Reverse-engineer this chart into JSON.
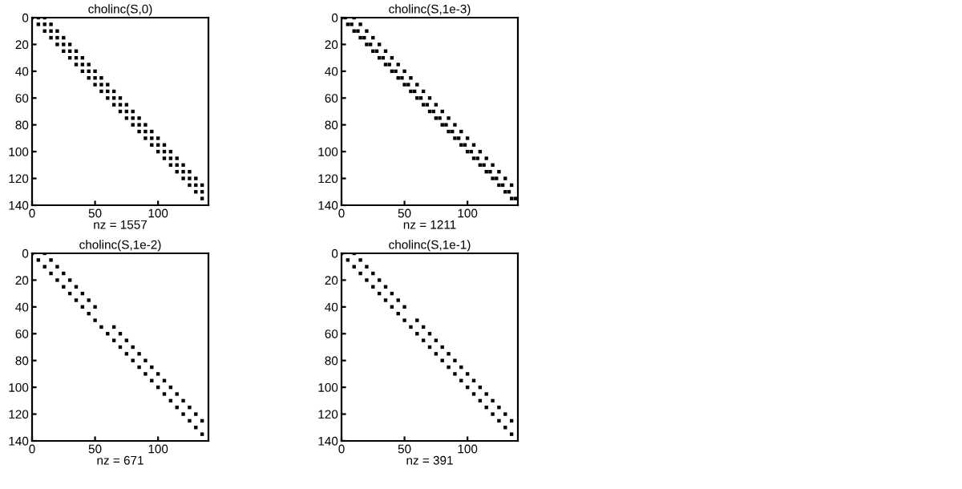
{
  "chart_data": [
    {
      "type": "scatter",
      "title": "cholinc(S,0)",
      "xlabel": "nz = 1557",
      "xlim": [
        0,
        140
      ],
      "ylim": [
        140,
        0
      ],
      "xticks": [
        0,
        50,
        100
      ],
      "yticks": [
        0,
        20,
        40,
        60,
        80,
        100,
        120,
        140
      ],
      "marker": "square",
      "grid": false,
      "series": [
        {
          "color": "#000000",
          "x": [
            0,
            5,
            10,
            15,
            20,
            25,
            30,
            35,
            40,
            45,
            50,
            55,
            60,
            65,
            70,
            75,
            80,
            85,
            90,
            95,
            100,
            105,
            110,
            115,
            120,
            125,
            130,
            135
          ],
          "values": [
            0,
            5,
            10,
            15,
            20,
            25,
            30,
            35,
            40,
            45,
            50,
            55,
            60,
            65,
            70,
            75,
            80,
            85,
            90,
            95,
            100,
            105,
            110,
            115,
            120,
            125,
            130,
            135
          ]
        },
        {
          "color": "#000000",
          "x": [
            5,
            10,
            15,
            20,
            25,
            30,
            35,
            40,
            45,
            50,
            55,
            60,
            65,
            70,
            75,
            80,
            85,
            90,
            95,
            100,
            105,
            110,
            115,
            120,
            125,
            130,
            135
          ],
          "values": [
            0,
            5,
            10,
            15,
            20,
            25,
            30,
            35,
            40,
            45,
            50,
            55,
            60,
            65,
            70,
            75,
            80,
            85,
            90,
            95,
            100,
            105,
            110,
            115,
            120,
            125,
            130
          ]
        },
        {
          "color": "#000000",
          "x": [
            10,
            15,
            20,
            25,
            30,
            35,
            40,
            45,
            50,
            55,
            60,
            65,
            70,
            75,
            80,
            85,
            90,
            95,
            100,
            105,
            110,
            115,
            120,
            125,
            130,
            135
          ],
          "values": [
            0,
            5,
            10,
            15,
            20,
            25,
            30,
            35,
            40,
            45,
            50,
            55,
            60,
            65,
            70,
            75,
            80,
            85,
            90,
            95,
            100,
            105,
            110,
            115,
            120,
            125
          ]
        }
      ]
    },
    {
      "type": "scatter",
      "title": "cholinc(S,1e-3)",
      "xlabel": "nz = 1211",
      "xlim": [
        0,
        140
      ],
      "ylim": [
        140,
        0
      ],
      "xticks": [
        0,
        50,
        100
      ],
      "yticks": [
        0,
        20,
        40,
        60,
        80,
        100,
        120,
        140
      ],
      "marker": "square",
      "grid": false,
      "series": [
        {
          "color": "#000000",
          "x": [
            0,
            5,
            10,
            15,
            20,
            25,
            30,
            35,
            40,
            45,
            50,
            55,
            60,
            65,
            70,
            75,
            80,
            85,
            90,
            95,
            100,
            105,
            110,
            115,
            120,
            125,
            130,
            135
          ],
          "values": [
            0,
            5,
            10,
            15,
            20,
            25,
            30,
            35,
            40,
            45,
            50,
            55,
            60,
            65,
            70,
            75,
            80,
            85,
            90,
            95,
            100,
            105,
            110,
            115,
            120,
            125,
            130,
            135
          ]
        },
        {
          "color": "#000000",
          "x": [
            3,
            8,
            13,
            18,
            23,
            28,
            33,
            38,
            43,
            48,
            53,
            58,
            63,
            68,
            73,
            78,
            83,
            88,
            93,
            98,
            103,
            108,
            113,
            118,
            123,
            128,
            133,
            138
          ],
          "values": [
            0,
            5,
            10,
            15,
            20,
            25,
            30,
            35,
            40,
            45,
            50,
            55,
            60,
            65,
            70,
            75,
            80,
            85,
            90,
            95,
            100,
            105,
            110,
            115,
            120,
            125,
            130,
            135
          ]
        },
        {
          "color": "#000000",
          "x": [
            10,
            15,
            20,
            25,
            30,
            35,
            40,
            45,
            50,
            55,
            60,
            65,
            70,
            75,
            80,
            85,
            90,
            95,
            100,
            105,
            110,
            115,
            120,
            125,
            130,
            135
          ],
          "values": [
            0,
            5,
            10,
            15,
            20,
            25,
            30,
            35,
            40,
            45,
            50,
            55,
            60,
            65,
            70,
            75,
            80,
            85,
            90,
            95,
            100,
            105,
            110,
            115,
            120,
            125
          ]
        }
      ]
    },
    {
      "type": "scatter",
      "title": "cholinc(S,1e-2)",
      "xlabel": "nz = 671",
      "xlim": [
        0,
        140
      ],
      "ylim": [
        140,
        0
      ],
      "xticks": [
        0,
        50,
        100
      ],
      "yticks": [
        0,
        20,
        40,
        60,
        80,
        100,
        120,
        140
      ],
      "marker": "square",
      "grid": false,
      "series": [
        {
          "color": "#000000",
          "x": [
            0,
            5,
            10,
            15,
            20,
            25,
            30,
            35,
            40,
            45,
            50,
            55,
            60,
            65,
            70,
            75,
            80,
            85,
            90,
            95,
            100,
            105,
            110,
            115,
            120,
            125,
            130,
            135
          ],
          "values": [
            0,
            5,
            10,
            15,
            20,
            25,
            30,
            35,
            40,
            45,
            50,
            55,
            60,
            65,
            70,
            75,
            80,
            85,
            90,
            95,
            100,
            105,
            110,
            115,
            120,
            125,
            130,
            135
          ]
        },
        {
          "color": "#000000",
          "x": [
            10,
            15,
            20,
            25,
            30,
            35,
            40,
            45,
            50,
            65,
            70,
            75,
            80,
            85,
            90,
            95,
            100,
            105,
            110,
            115,
            120,
            125,
            130,
            135
          ],
          "values": [
            0,
            5,
            10,
            15,
            20,
            25,
            30,
            35,
            40,
            55,
            60,
            65,
            70,
            75,
            80,
            85,
            90,
            95,
            100,
            105,
            110,
            115,
            120,
            125
          ]
        }
      ]
    },
    {
      "type": "scatter",
      "title": "cholinc(S,1e-1)",
      "xlabel": "nz = 391",
      "xlim": [
        0,
        140
      ],
      "ylim": [
        140,
        0
      ],
      "xticks": [
        0,
        50,
        100
      ],
      "yticks": [
        0,
        20,
        40,
        60,
        80,
        100,
        120,
        140
      ],
      "marker": "square",
      "grid": false,
      "series": [
        {
          "color": "#000000",
          "x": [
            0,
            5,
            10,
            15,
            20,
            25,
            30,
            35,
            40,
            45,
            50,
            55,
            60,
            65,
            70,
            75,
            80,
            85,
            90,
            95,
            100,
            105,
            110,
            115,
            120,
            125,
            130,
            135
          ],
          "values": [
            0,
            5,
            10,
            15,
            20,
            25,
            30,
            35,
            40,
            45,
            50,
            55,
            60,
            65,
            70,
            75,
            80,
            85,
            90,
            95,
            100,
            105,
            110,
            115,
            120,
            125,
            130,
            135
          ]
        },
        {
          "color": "#000000",
          "x": [
            10,
            15,
            20,
            25,
            30,
            35,
            40,
            45,
            50,
            60,
            65,
            70,
            75,
            80,
            85,
            90,
            95,
            100,
            105,
            110,
            115,
            120,
            125,
            130,
            135
          ],
          "values": [
            0,
            5,
            10,
            15,
            20,
            25,
            30,
            35,
            40,
            50,
            55,
            60,
            65,
            70,
            75,
            80,
            85,
            90,
            95,
            100,
            105,
            110,
            115,
            120,
            125
          ]
        }
      ]
    }
  ]
}
